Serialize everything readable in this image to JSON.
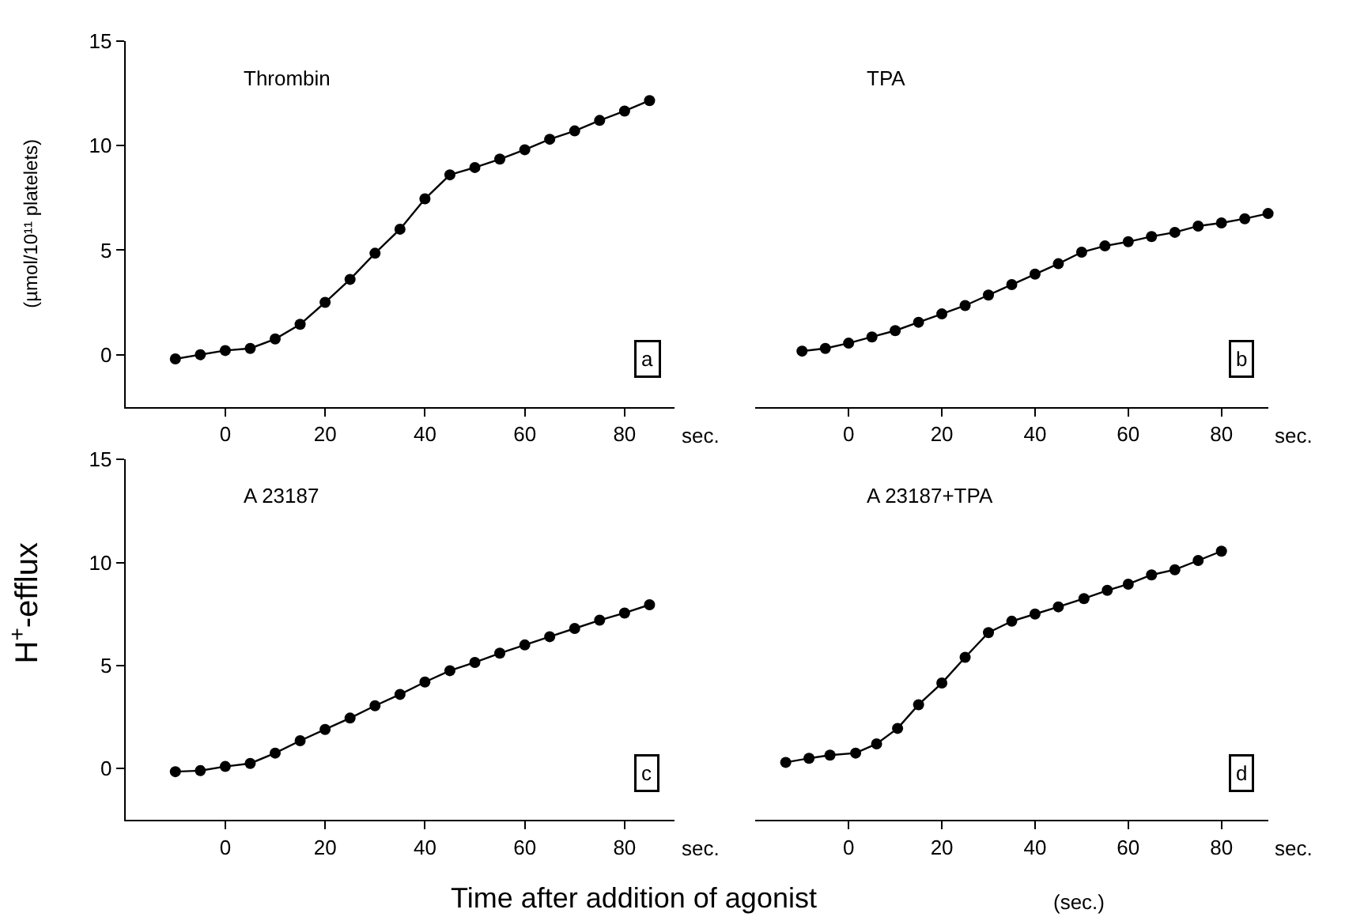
{
  "chart_data": [
    {
      "type": "line",
      "ylabel": "(µmol/10¹¹ platelets)",
      "xlabel": "sec.",
      "annotations": [
        "Thrombin",
        "a"
      ],
      "marker": "circle",
      "line_style": "solid",
      "xlim": [
        -20,
        90
      ],
      "ylim": [
        -2.5,
        15
      ],
      "xticks": [
        0,
        20,
        40,
        60,
        80
      ],
      "yticks": [
        0,
        5,
        10,
        15
      ],
      "x": [
        -10,
        -5,
        0,
        5,
        10,
        15,
        20,
        25,
        30,
        35,
        40,
        45,
        50,
        55,
        60,
        65,
        70,
        75,
        80,
        85
      ],
      "series": [
        {
          "color": "#000000",
          "values": [
            -0.2,
            0.0,
            0.2,
            0.3,
            0.75,
            1.45,
            2.5,
            3.6,
            4.85,
            6.0,
            7.45,
            8.6,
            8.95,
            9.35,
            9.8,
            10.3,
            10.7,
            11.2,
            11.65,
            12.15
          ]
        }
      ]
    },
    {
      "type": "line",
      "xlabel": "sec.",
      "annotations": [
        "TPA",
        "b"
      ],
      "marker": "circle",
      "line_style": "solid",
      "tick_labels": "x",
      "xlim": [
        -20,
        90
      ],
      "ylim": [
        -2.5,
        15
      ],
      "xticks": [
        0,
        20,
        40,
        60,
        80
      ],
      "yticks": [
        0,
        5,
        10,
        15
      ],
      "x": [
        -10,
        -5,
        0,
        5,
        10,
        15,
        20,
        25,
        30,
        35,
        40,
        45,
        50,
        55,
        60,
        65,
        70,
        75,
        80,
        85,
        90
      ],
      "series": [
        {
          "color": "#000000",
          "values": [
            0.17,
            0.3,
            0.55,
            0.85,
            1.15,
            1.55,
            1.95,
            2.35,
            2.85,
            3.35,
            3.85,
            4.35,
            4.9,
            5.2,
            5.4,
            5.65,
            5.85,
            6.15,
            6.3,
            6.5,
            6.75
          ]
        }
      ]
    },
    {
      "type": "line",
      "ylabel": "H$^{+}$-efflux",
      "xlabel": "Time after addition of agonist",
      "annotations": [
        "A 23187",
        "c",
        "sec."
      ],
      "marker": "circle",
      "line_style": "solid",
      "xlim": [
        -20,
        90
      ],
      "ylim": [
        -2.5,
        15
      ],
      "xticks": [
        0,
        20,
        40,
        60,
        80
      ],
      "yticks": [
        0,
        5,
        10,
        15
      ],
      "x": [
        -10,
        -5,
        0,
        5,
        10,
        15,
        20,
        25,
        30,
        35,
        40,
        45,
        50,
        55,
        60,
        65,
        70,
        75,
        80,
        85
      ],
      "series": [
        {
          "color": "#000000",
          "values": [
            -0.15,
            -0.1,
            0.1,
            0.25,
            0.75,
            1.35,
            1.9,
            2.45,
            3.05,
            3.6,
            4.2,
            4.75,
            5.15,
            5.6,
            6.0,
            6.4,
            6.8,
            7.2,
            7.55,
            7.95
          ]
        }
      ]
    },
    {
      "type": "line",
      "xlabel": "(sec.)",
      "annotations": [
        "A 23187+TPA",
        "d",
        "sec."
      ],
      "marker": "circle",
      "line_style": "solid",
      "tick_labels": "x",
      "xlim": [
        -20,
        90
      ],
      "ylim": [
        -2.5,
        15
      ],
      "xticks": [
        0,
        20,
        40,
        60,
        80
      ],
      "yticks": [
        0,
        5,
        10,
        15
      ],
      "x": [
        -13.5,
        -8.5,
        -4,
        1.5,
        6,
        10.5,
        15,
        20,
        25,
        30,
        35,
        40,
        45,
        50.5,
        55.5,
        60,
        65,
        70,
        75,
        80
      ],
      "series": [
        {
          "color": "#000000",
          "values": [
            0.3,
            0.5,
            0.65,
            0.75,
            1.2,
            1.95,
            3.1,
            4.15,
            5.4,
            6.6,
            7.15,
            7.5,
            7.85,
            8.25,
            8.65,
            8.95,
            9.4,
            9.65,
            10.1,
            10.55
          ]
        }
      ]
    }
  ]
}
